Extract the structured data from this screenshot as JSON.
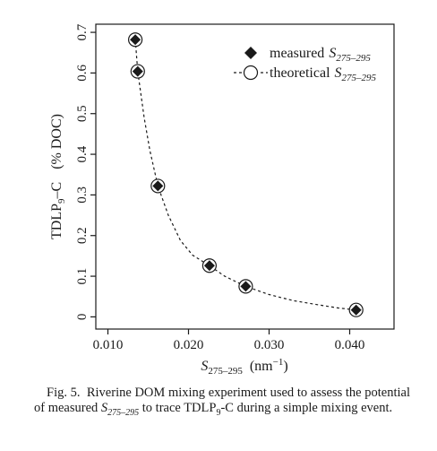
{
  "chart_data": {
    "type": "scatter",
    "xlim": [
      0.0085,
      0.0455
    ],
    "ylim": [
      -0.03,
      0.72
    ],
    "x_ticks": [
      {
        "value": 0.01,
        "label": "0.010"
      },
      {
        "value": 0.02,
        "label": "0.020"
      },
      {
        "value": 0.03,
        "label": "0.030"
      },
      {
        "value": 0.04,
        "label": "0.040"
      }
    ],
    "y_ticks": [
      {
        "value": 0,
        "label": "0"
      },
      {
        "value": 0.1,
        "label": "0.1"
      },
      {
        "value": 0.2,
        "label": "0.2"
      },
      {
        "value": 0.3,
        "label": "0.3"
      },
      {
        "value": 0.4,
        "label": "0.4"
      },
      {
        "value": 0.5,
        "label": "0.5"
      },
      {
        "value": 0.6,
        "label": "0.6"
      },
      {
        "value": 0.7,
        "label": "0.7"
      }
    ],
    "xlabel": {
      "main": "S",
      "sub": "275–295",
      "unit_prefix": "(nm",
      "unit_sup": "−1",
      "unit_suffix": ")"
    },
    "ylabel": {
      "pre": "TDLP",
      "sub": "9",
      "post": "–C",
      "unit": "(% DOC)"
    },
    "legend_position": "top-right",
    "series": [
      {
        "name": "measured",
        "name_sym": "S",
        "name_sub": "275–295",
        "marker": "diamond",
        "color": "#1a1a1a",
        "x": [
          0.0134,
          0.0137,
          0.0162,
          0.0226,
          0.0271,
          0.0408
        ],
        "y": [
          0.682,
          0.604,
          0.322,
          0.126,
          0.075,
          0.017
        ]
      },
      {
        "name": "theoretical",
        "name_sym": "S",
        "name_sub": "275–295",
        "marker": "circle",
        "line": "dashed",
        "color": "#1a1a1a",
        "x": [
          0.0134,
          0.0137,
          0.0162,
          0.0226,
          0.0271,
          0.0408
        ],
        "y": [
          0.682,
          0.604,
          0.322,
          0.126,
          0.075,
          0.017
        ]
      }
    ],
    "curve": {
      "x": [
        0.0134,
        0.0137,
        0.0145,
        0.0152,
        0.0162,
        0.0175,
        0.019,
        0.0205,
        0.0226,
        0.0245,
        0.0271,
        0.03,
        0.033,
        0.036,
        0.0385,
        0.0408
      ],
      "y": [
        0.682,
        0.604,
        0.49,
        0.41,
        0.322,
        0.25,
        0.188,
        0.152,
        0.126,
        0.1,
        0.075,
        0.055,
        0.04,
        0.03,
        0.022,
        0.017
      ]
    }
  },
  "caption": {
    "fig": "Fig. 5.",
    "t1": "Riverine DOM mixing experiment used to assess the potential of measured",
    "sym": "S",
    "sym_sub": "275–295",
    "t2": "to trace TDLP",
    "t2_sub": "9",
    "t3": "-C during a simple mixing event."
  }
}
